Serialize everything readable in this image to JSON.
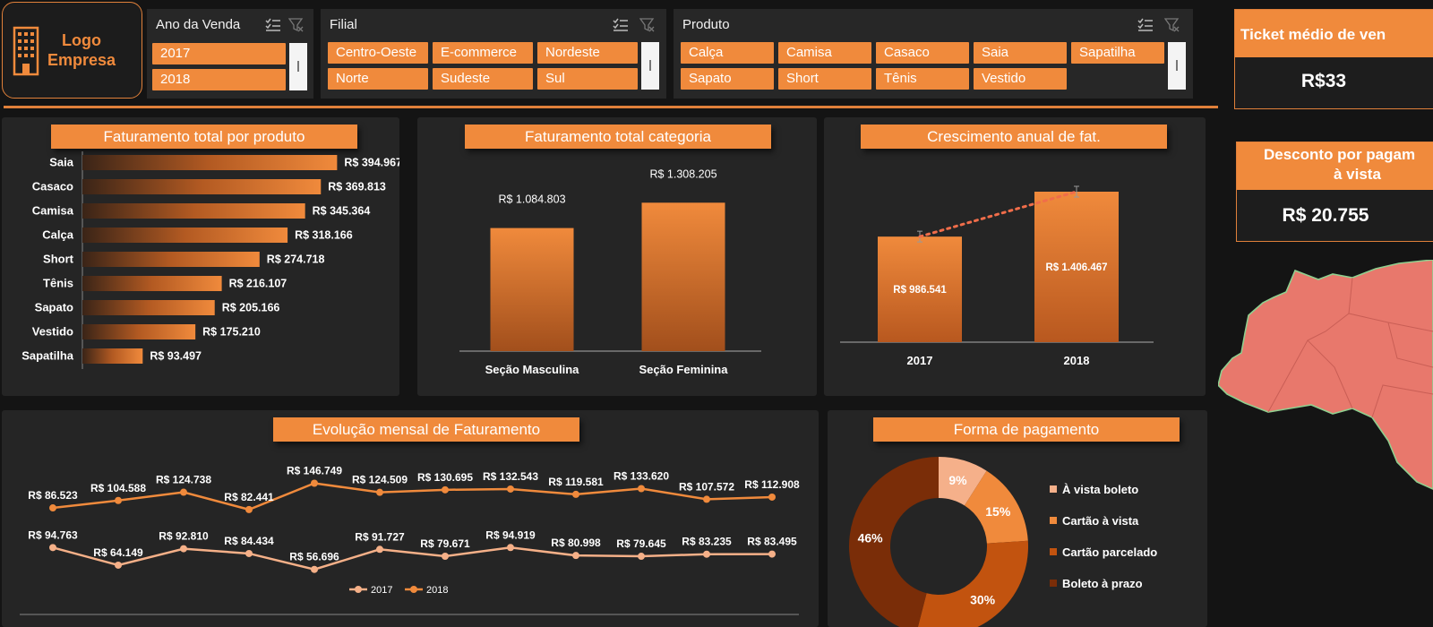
{
  "logo": {
    "line1": "Logo",
    "line2": "Empresa"
  },
  "slicers": {
    "ano": {
      "title": "Ano da Venda",
      "items": [
        "2017",
        "2018"
      ]
    },
    "filial": {
      "title": "Filial",
      "items": [
        "Centro-Oeste",
        "E-commerce",
        "Nordeste",
        "Norte",
        "Sudeste",
        "Sul"
      ]
    },
    "produto": {
      "title": "Produto",
      "items": [
        "Calça",
        "Camisa",
        "Casaco",
        "Saia",
        "Sapatilha",
        "Sapato",
        "Short",
        "Tênis",
        "Vestido"
      ]
    }
  },
  "kpis": {
    "ticket": {
      "title": "Ticket médio de ven",
      "value": "R$33"
    },
    "desconto": {
      "title_line1": "Desconto por pagam",
      "title_line2": "à vista",
      "value": "R$ 20.755"
    }
  },
  "chart_data": [
    {
      "type": "bar",
      "orientation": "horizontal",
      "title": "Faturamento total por produto",
      "categories": [
        "Saia",
        "Casaco",
        "Camisa",
        "Calça",
        "Short",
        "Tênis",
        "Sapato",
        "Vestido",
        "Sapatilha"
      ],
      "values": [
        394967,
        369813,
        345364,
        318166,
        274718,
        216107,
        205166,
        175210,
        93497
      ],
      "labels": [
        "R$ 394.967",
        "R$ 369.813",
        "R$ 345.364",
        "R$ 318.166",
        "R$ 274.718",
        "R$ 216.107",
        "R$ 205.166",
        "R$ 175.210",
        "R$ 93.497"
      ],
      "xlim": [
        0,
        500000
      ]
    },
    {
      "type": "bar",
      "title": "Faturamento total categoria",
      "categories": [
        "Seção Masculina",
        "Seção Feminina"
      ],
      "values": [
        1084803,
        1308205
      ],
      "labels": [
        "R$ 1.084.803",
        "R$ 1.308.205"
      ],
      "ylim": [
        0,
        1500000
      ]
    },
    {
      "type": "bar",
      "title": "Crescimento anual de fat.",
      "categories": [
        "2017",
        "2018"
      ],
      "values": [
        986541,
        1406467
      ],
      "labels": [
        "R$ 986.541",
        "R$ 1.406.467"
      ],
      "trendline": "dotted",
      "ylim": [
        0,
        1500000
      ]
    },
    {
      "type": "line",
      "title": "Evolução mensal de Faturamento",
      "x": [
        1,
        2,
        3,
        4,
        5,
        6,
        7,
        8,
        9,
        10,
        11,
        12
      ],
      "series": [
        {
          "name": "2017",
          "values": [
            94763,
            64149,
            92810,
            84434,
            56696,
            91727,
            79671,
            94919,
            80998,
            79645,
            83235,
            83495
          ],
          "labels": [
            "R$ 94.763",
            "R$ 64.149",
            "R$ 92.810",
            "R$ 84.434",
            "R$ 56.696",
            "R$ 91.727",
            "R$ 79.671",
            "R$ 94.919",
            "R$ 80.998",
            "R$ 79.645",
            "R$ 83.235",
            "R$ 83.495"
          ]
        },
        {
          "name": "2018",
          "values": [
            86523,
            104588,
            124738,
            82441,
            146749,
            124509,
            130695,
            132543,
            119581,
            133620,
            107572,
            112908
          ],
          "labels": [
            "R$ 86.523",
            "R$ 104.588",
            "R$ 124.738",
            "R$ 82.441",
            "R$ 146.749",
            "R$ 124.509",
            "R$ 130.695",
            "R$ 132.543",
            "R$ 119.581",
            "R$ 133.620",
            "R$ 107.572",
            "R$ 112.908"
          ]
        }
      ],
      "legend": "bottom"
    },
    {
      "type": "pie",
      "variant": "donut",
      "title": "Forma de pagamento",
      "categories": [
        "À vista boleto",
        "Cartão à vista",
        "Cartão parcelado",
        "Boleto à prazo"
      ],
      "values": [
        9,
        15,
        30,
        46
      ],
      "labels": [
        "9%",
        "15%",
        "30%",
        "46%"
      ],
      "legend": "right"
    }
  ],
  "colors": {
    "accent": "#f08a3c",
    "background": "#141414",
    "panel": "#252525",
    "map": "#e8786c"
  }
}
